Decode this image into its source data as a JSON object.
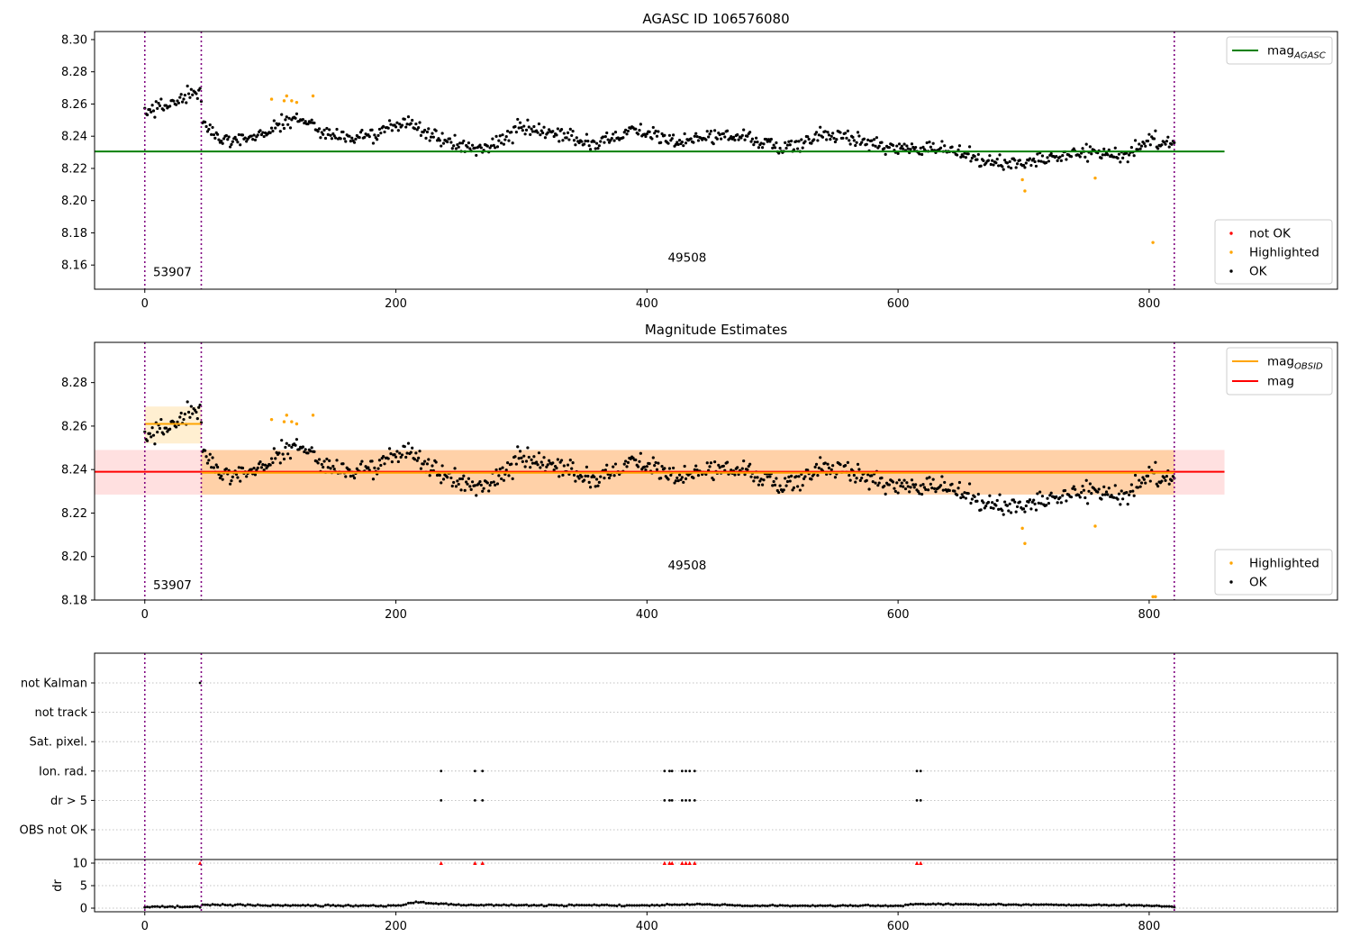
{
  "chart_data": [
    {
      "id": "agasc",
      "type": "scatter",
      "title": "AGASC ID 106576080",
      "xlim": [
        -40,
        950
      ],
      "ylim": [
        8.145,
        8.305
      ],
      "x_ticks": [
        0,
        200,
        400,
        600,
        800
      ],
      "x_tick_labels": [
        "0",
        "200",
        "400",
        "600",
        "800"
      ],
      "y_ticks": [
        8.16,
        8.18,
        8.2,
        8.22,
        8.24,
        8.26,
        8.28,
        8.3
      ],
      "y_tick_labels": [
        "8.16",
        "8.18",
        "8.20",
        "8.22",
        "8.24",
        "8.26",
        "8.28",
        "8.30"
      ],
      "obs_boundaries": [
        0,
        45,
        820
      ],
      "obs_labels": [
        {
          "text": "53907",
          "x": 22,
          "y": 8.153
        },
        {
          "text": "49508",
          "x": 432,
          "y": 8.162
        }
      ],
      "hlines": [
        {
          "name": "mag_AGASC",
          "y": 8.2305,
          "x_range": [
            -40,
            860
          ],
          "color": "#008000"
        }
      ],
      "legend_lines": {
        "placement": "upper-right",
        "entries": [
          {
            "label": "mag",
            "sub": "AGASC",
            "color": "#008000"
          }
        ]
      },
      "legend_points": {
        "placement": "lower-right",
        "entries": [
          {
            "label": "not OK",
            "color": "#ff0000"
          },
          {
            "label": "Highlighted",
            "color": "#ffa500"
          },
          {
            "label": "OK",
            "color": "#000000"
          }
        ]
      },
      "highlighted_points": [
        {
          "x": 101,
          "y": 8.263
        },
        {
          "x": 111,
          "y": 8.262
        },
        {
          "x": 113,
          "y": 8.265
        },
        {
          "x": 117,
          "y": 8.262
        },
        {
          "x": 121,
          "y": 8.261
        },
        {
          "x": 134,
          "y": 8.265
        },
        {
          "x": 699,
          "y": 8.213
        },
        {
          "x": 701,
          "y": 8.206
        },
        {
          "x": 757,
          "y": 8.214
        },
        {
          "x": 803,
          "y": 8.174
        }
      ],
      "ok_series_profile": {
        "x": [
          0,
          20,
          44,
          46,
          60,
          90,
          120,
          150,
          180,
          210,
          240,
          270,
          300,
          330,
          360,
          390,
          420,
          450,
          480,
          510,
          540,
          570,
          600,
          630,
          660,
          690,
          720,
          750,
          780,
          800,
          820
        ],
        "y": [
          8.255,
          8.26,
          8.268,
          8.248,
          8.238,
          8.24,
          8.252,
          8.24,
          8.24,
          8.249,
          8.236,
          8.232,
          8.245,
          8.24,
          8.236,
          8.245,
          8.236,
          8.24,
          8.24,
          8.232,
          8.241,
          8.238,
          8.232,
          8.234,
          8.226,
          8.222,
          8.228,
          8.23,
          8.228,
          8.238,
          8.237
        ]
      }
    },
    {
      "id": "estimates",
      "type": "scatter",
      "title": "Magnitude Estimates",
      "xlim": [
        -40,
        950
      ],
      "ylim": [
        8.18,
        8.2985
      ],
      "x_ticks": [
        0,
        200,
        400,
        600,
        800
      ],
      "x_tick_labels": [
        "0",
        "200",
        "400",
        "600",
        "800"
      ],
      "y_ticks": [
        8.18,
        8.2,
        8.22,
        8.24,
        8.26,
        8.28
      ],
      "y_tick_labels": [
        "8.18",
        "8.20",
        "8.22",
        "8.24",
        "8.26",
        "8.28"
      ],
      "obs_boundaries": [
        0,
        45,
        820
      ],
      "obs_labels": [
        {
          "text": "53907",
          "x": 22,
          "y": 8.185
        },
        {
          "text": "49508",
          "x": 432,
          "y": 8.194
        }
      ],
      "bands": [
        {
          "name": "mag band",
          "x_range": [
            -40,
            860
          ],
          "y_range": [
            8.2285,
            8.249
          ],
          "color": "#ff0000",
          "opacity": 0.12
        },
        {
          "name": "mag_OBSID 53907 band",
          "x_range": [
            0,
            45
          ],
          "y_range": [
            8.252,
            8.269
          ],
          "color": "#ffa500",
          "opacity": 0.18
        },
        {
          "name": "mag_OBSID 49508 band",
          "x_range": [
            45,
            820
          ],
          "y_range": [
            8.2285,
            8.249
          ],
          "color": "#ffa500",
          "opacity": 0.25
        }
      ],
      "hlines": [
        {
          "name": "mag",
          "y": 8.239,
          "x_range": [
            -40,
            860
          ],
          "color": "#ff0000"
        },
        {
          "name": "mag_OBSID 53907",
          "y": 8.261,
          "x_range": [
            0,
            45
          ],
          "color": "#ffa500"
        },
        {
          "name": "mag_OBSID 49508",
          "y": 8.2385,
          "x_range": [
            45,
            820
          ],
          "color": "#ffa500"
        }
      ],
      "legend_lines": {
        "placement": "upper-right",
        "entries": [
          {
            "label": "mag",
            "sub": "OBSID",
            "color": "#ffa500"
          },
          {
            "label": "mag",
            "sub": "",
            "color": "#ff0000"
          }
        ]
      },
      "legend_points": {
        "placement": "lower-right",
        "entries": [
          {
            "label": "Highlighted",
            "color": "#ffa500"
          },
          {
            "label": "OK",
            "color": "#000000"
          }
        ]
      },
      "highlighted_points": [
        {
          "x": 101,
          "y": 8.263
        },
        {
          "x": 111,
          "y": 8.262
        },
        {
          "x": 113,
          "y": 8.265
        },
        {
          "x": 117,
          "y": 8.262
        },
        {
          "x": 121,
          "y": 8.261
        },
        {
          "x": 134,
          "y": 8.265
        },
        {
          "x": 699,
          "y": 8.213
        },
        {
          "x": 701,
          "y": 8.206
        },
        {
          "x": 757,
          "y": 8.214
        },
        {
          "x": 803,
          "y": 8.1815
        },
        {
          "x": 805,
          "y": 8.1815
        }
      ],
      "ok_series_profile": {
        "x": [
          0,
          20,
          44,
          46,
          60,
          90,
          120,
          150,
          180,
          210,
          240,
          270,
          300,
          330,
          360,
          390,
          420,
          450,
          480,
          510,
          540,
          570,
          600,
          630,
          660,
          690,
          720,
          750,
          780,
          800,
          820
        ],
        "y": [
          8.255,
          8.26,
          8.268,
          8.248,
          8.238,
          8.24,
          8.252,
          8.24,
          8.24,
          8.249,
          8.236,
          8.232,
          8.245,
          8.24,
          8.236,
          8.245,
          8.236,
          8.24,
          8.24,
          8.232,
          8.241,
          8.238,
          8.232,
          8.234,
          8.226,
          8.222,
          8.228,
          8.23,
          8.228,
          8.238,
          8.237
        ]
      }
    },
    {
      "id": "flags",
      "type": "scatter",
      "xlim": [
        -40,
        950
      ],
      "categories": [
        "not Kalman",
        "not track",
        "Sat. pixel.",
        "Ion. rad.",
        "dr > 5",
        "OBS not OK"
      ],
      "obs_boundaries": [
        0,
        45,
        820
      ],
      "flag_points": {
        "not Kalman": [
          44
        ],
        "Ion. rad.": [
          236,
          263,
          269,
          414,
          418,
          420,
          428,
          431,
          434,
          438,
          615,
          618
        ],
        "dr > 5": [
          236,
          263,
          269,
          414,
          418,
          420,
          428,
          431,
          434,
          438,
          615,
          618
        ]
      }
    },
    {
      "id": "dr",
      "type": "scatter",
      "ylabel": "dr",
      "xlim": [
        -40,
        950
      ],
      "ylim": [
        -0.8,
        10.8
      ],
      "x_ticks": [
        0,
        200,
        400,
        600,
        800
      ],
      "x_tick_labels": [
        "0",
        "200",
        "400",
        "600",
        "800"
      ],
      "y_ticks": [
        0,
        5,
        10
      ],
      "y_tick_labels": [
        "0",
        "5",
        "10"
      ],
      "obs_boundaries": [
        0,
        45,
        820
      ],
      "capped_markers": {
        "y": 10,
        "color": "#ff0000",
        "x": [
          44,
          236,
          263,
          269,
          414,
          418,
          420,
          428,
          431,
          434,
          438,
          615,
          618
        ]
      },
      "dr_profile": {
        "x": [
          0,
          44,
          46,
          100,
          200,
          215,
          250,
          400,
          440,
          470,
          600,
          620,
          800,
          820
        ],
        "y": [
          0.3,
          0.3,
          0.8,
          0.6,
          0.5,
          1.3,
          0.7,
          0.6,
          0.9,
          0.6,
          0.5,
          0.9,
          0.6,
          0.3
        ]
      }
    }
  ]
}
